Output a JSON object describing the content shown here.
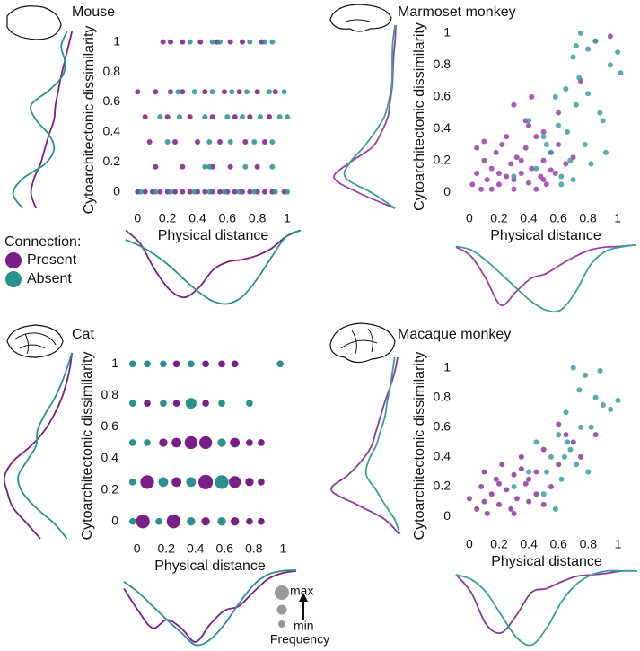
{
  "chart_data": [
    {
      "type": "scatter",
      "title": "Mouse",
      "x_label": "Physical distance",
      "y_label": "Cytoarchitectonic dissimilarity",
      "xlim": [
        -0.08,
        1.09
      ],
      "ylim": [
        -0.11,
        1.07
      ],
      "xticks": [
        0,
        0.2,
        0.4,
        0.6,
        0.8,
        1
      ],
      "yticks": [
        0,
        0.2,
        0.4,
        0.6,
        0.8,
        1
      ],
      "legend_title": "Connection:",
      "series": [
        {
          "name": "Present",
          "color": "#7a1f87",
          "x": [
            0.17,
            0.22,
            0.3,
            0.42,
            0.53,
            0.62,
            0.7,
            0.83,
            0.0,
            0.12,
            0.22,
            0.3,
            0.45,
            0.58,
            0.68,
            0.8,
            0.92,
            0.05,
            0.2,
            0.35,
            0.5,
            0.65,
            0.75,
            0.88,
            0.08,
            0.25,
            0.4,
            0.55,
            0.72,
            0.85,
            0.12,
            0.3,
            0.5,
            0.62,
            0.8,
            0,
            0.05,
            0.1,
            0.15,
            0.2,
            0.25,
            0.3,
            0.35,
            0.4,
            0.45,
            0.5,
            0.55,
            0.6,
            0.65,
            0.7,
            0.75,
            0.8,
            0.85,
            0.9,
            0.98
          ],
          "y": [
            1,
            1,
            1,
            1,
            1,
            1,
            1,
            1,
            0.667,
            0.667,
            0.667,
            0.667,
            0.667,
            0.667,
            0.667,
            0.667,
            0.667,
            0.5,
            0.5,
            0.5,
            0.5,
            0.5,
            0.5,
            0.5,
            0.333,
            0.333,
            0.333,
            0.333,
            0.333,
            0.333,
            0.167,
            0.167,
            0.167,
            0.167,
            0.167,
            0,
            0,
            0,
            0,
            0,
            0,
            0,
            0,
            0,
            0,
            0,
            0,
            0,
            0,
            0,
            0,
            0,
            0,
            0,
            0
          ],
          "x_density": [
            0.05,
            0.22,
            0.55,
            0.8,
            0.9,
            0.78,
            0.55,
            0.45,
            0.42,
            0.37,
            0.28,
            0.13,
            0.05
          ],
          "y_density": [
            0.56,
            0.63,
            0.59,
            0.5,
            0.44,
            0.38,
            0.31,
            0.29,
            0.25,
            0.21,
            0.16,
            0.11,
            0.06
          ]
        },
        {
          "name": "Absent",
          "color": "#2a928e",
          "x": [
            0.35,
            0.5,
            0.55,
            0.75,
            0.85,
            0.9,
            0.27,
            0.38,
            0.5,
            0.63,
            0.73,
            0.88,
            0.98,
            0.15,
            0.28,
            0.45,
            0.6,
            0.7,
            0.82,
            0.95,
            1.0,
            0.2,
            0.48,
            0.62,
            0.78,
            0.9,
            0.45,
            0.48,
            0.72,
            0.9,
            0.02,
            0.12,
            0.22,
            0.38,
            0.48,
            0.58,
            0.68,
            0.78,
            0.92,
            1.0
          ],
          "y": [
            1,
            1,
            1,
            1,
            1,
            1,
            0.667,
            0.667,
            0.667,
            0.667,
            0.667,
            0.667,
            0.667,
            0.5,
            0.5,
            0.5,
            0.5,
            0.5,
            0.5,
            0.5,
            0.5,
            0.333,
            0.333,
            0.333,
            0.333,
            0.333,
            0.167,
            0.167,
            0.167,
            0.167,
            0,
            0,
            0,
            0,
            0,
            0,
            0,
            0,
            0,
            0
          ],
          "x_density": [
            0.17,
            0.25,
            0.36,
            0.5,
            0.67,
            0.83,
            0.95,
            0.98,
            0.89,
            0.67,
            0.39,
            0.13,
            0.05
          ],
          "y_density": [
            0.75,
            0.88,
            0.75,
            0.44,
            0.31,
            0.38,
            0.56,
            0.63,
            0.38,
            0.19,
            0.16,
            0.21,
            0.13
          ]
        }
      ]
    },
    {
      "type": "scatter",
      "title": "Marmoset monkey",
      "x_label": "Physical distance",
      "y_label": "Cytoarchitectonic dissimilarity",
      "xlim": [
        -0.09,
        1.12
      ],
      "ylim": [
        -0.1,
        1.05
      ],
      "xticks": [
        0,
        0.2,
        0.4,
        0.6,
        0.8,
        1
      ],
      "yticks": [
        0,
        0.2,
        0.4,
        0.6,
        0.8,
        1
      ],
      "series": [
        {
          "color": "#9b3ea8",
          "x": [
            0.02,
            0.05,
            0.08,
            0.1,
            0.12,
            0.15,
            0.18,
            0.2,
            0.22,
            0.25,
            0.28,
            0.3,
            0.32,
            0.35,
            0.38,
            0.4,
            0.42,
            0.45,
            0.48,
            0.5,
            0.52,
            0.55,
            0.58,
            0.6,
            0.65,
            0.7,
            0.05,
            0.1,
            0.15,
            0.2,
            0.25,
            0.3,
            0.35,
            0.4,
            0.45,
            0.5,
            0.55,
            0.3,
            0.42,
            0.6,
            0.75,
            0.85,
            0.95,
            0.5,
            0.38
          ],
          "y": [
            0.05,
            0.12,
            0.02,
            0.2,
            0.08,
            0.15,
            0.25,
            0.05,
            0.3,
            0.1,
            0.18,
            0.02,
            0.22,
            0.12,
            0.28,
            0.06,
            0.15,
            0.35,
            0.1,
            0.2,
            0.05,
            0.25,
            0.12,
            0.3,
            0.18,
            0.22,
            0.28,
            0.32,
            0.02,
            0.12,
            0.35,
            0.08,
            0.2,
            0.42,
            0.02,
            0.38,
            0.14,
            0.55,
            0.6,
            0.5,
            0.7,
            0.95,
            0.98,
            0.08,
            0.45
          ],
          "x_density": [
            0.04,
            0.17,
            0.49,
            0.87,
            0.68,
            0.49,
            0.42,
            0.29,
            0.17,
            0.08,
            0.04,
            0.03,
            0.01
          ],
          "y_density": [
            0.06,
            0.56,
            0.91,
            0.69,
            0.38,
            0.25,
            0.16,
            0.13,
            0.1,
            0.09,
            0.08,
            0.06,
            0.05
          ]
        },
        {
          "color": "#3a9f9a",
          "x": [
            0.45,
            0.5,
            0.55,
            0.6,
            0.62,
            0.65,
            0.68,
            0.7,
            0.72,
            0.75,
            0.78,
            0.8,
            0.85,
            0.9,
            0.95,
            1.0,
            1.02,
            0.58,
            0.66,
            0.74,
            0.82,
            0.88,
            0.52,
            0.62,
            0.72,
            0.8,
            0.92,
            0.3,
            0.4,
            0.7
          ],
          "y": [
            0.15,
            0.35,
            0.25,
            0.42,
            0.1,
            0.65,
            0.2,
            0.85,
            0.55,
            1.0,
            0.3,
            0.9,
            0.95,
            0.45,
            0.8,
            0.88,
            0.75,
            0.6,
            0.38,
            0.72,
            0.18,
            0.5,
            0.3,
            0.05,
            0.92,
            0.62,
            0.25,
            0.1,
            0.45,
            0.08
          ],
          "x_density": [
            0.03,
            0.08,
            0.23,
            0.42,
            0.62,
            0.81,
            0.94,
            0.94,
            0.68,
            0.29,
            0.1,
            0.04,
            0.01
          ],
          "y_density": [
            0.06,
            0.38,
            0.75,
            0.69,
            0.5,
            0.34,
            0.21,
            0.15,
            0.11,
            0.1,
            0.1,
            0.09,
            0.06
          ]
        }
      ]
    },
    {
      "type": "bubble",
      "title": "Cat",
      "x_label": "Physical distance",
      "y_label": "Cytoarchitectonic dissimilarity",
      "xlim": [
        -0.09,
        1.09
      ],
      "ylim": [
        -0.11,
        1.07
      ],
      "xticks": [
        0,
        0.2,
        0.4,
        0.6,
        0.8,
        1
      ],
      "yticks": [
        0,
        0.2,
        0.4,
        0.6,
        0.8,
        1
      ],
      "size_legend": {
        "max": "max",
        "min": "min",
        "title": "Frequency"
      },
      "series": [
        {
          "color": "#7a1f87",
          "x": [
            0.27,
            0.47,
            0.58,
            0.67,
            0.07,
            0.27,
            0.47,
            0.18,
            0.27,
            0.37,
            0.47,
            0.67,
            0.77,
            0.85,
            0.07,
            0.27,
            0.47,
            0.67,
            0.77,
            0.85,
            0.04,
            0.25,
            0.47,
            0.67,
            0.77,
            0.85
          ],
          "y": [
            1,
            1,
            1,
            1,
            0.75,
            0.75,
            0.75,
            0.5,
            0.5,
            0.5,
            0.5,
            0.5,
            0.5,
            0.5,
            0.25,
            0.25,
            0.25,
            0.25,
            0.25,
            0.25,
            0,
            0,
            0,
            0,
            0,
            0
          ],
          "size": [
            2,
            2,
            2,
            2,
            2,
            2,
            2,
            3,
            4,
            7,
            7,
            4,
            2,
            2,
            8,
            4,
            9,
            6,
            3,
            2,
            8,
            8,
            3,
            3,
            2,
            2
          ],
          "x_density": [
            0.24,
            0.53,
            0.76,
            0.65,
            0.76,
            0.94,
            0.71,
            0.53,
            0.47,
            0.29,
            0.12,
            0.04,
            0.01
          ],
          "y_density": [
            0.5,
            0.69,
            0.88,
            0.96,
            1.0,
            0.88,
            0.63,
            0.44,
            0.31,
            0.21,
            0.14,
            0.09,
            0.06
          ]
        },
        {
          "color": "#2a928e",
          "x": [
            -0.03,
            0.07,
            0.18,
            0.37,
            0.98,
            -0.03,
            0.18,
            0.37,
            0.58,
            0.77,
            -0.03,
            0.07,
            0.58,
            -0.03,
            0.18,
            0.37,
            0.58,
            -0.03,
            0.15,
            0.37,
            0.58
          ],
          "y": [
            1,
            1,
            1,
            1,
            1,
            0.75,
            0.75,
            0.75,
            0.75,
            0.75,
            0.5,
            0.5,
            0.5,
            0.25,
            0.25,
            0.25,
            0.25,
            0,
            0,
            0,
            0
          ],
          "size": [
            2,
            2,
            2,
            2,
            2,
            2,
            2,
            5,
            2,
            2,
            2,
            2,
            3,
            2,
            4,
            4,
            8,
            2,
            2,
            3,
            3
          ],
          "x_density": [
            0.15,
            0.29,
            0.47,
            0.65,
            0.82,
            0.98,
            0.91,
            0.71,
            0.44,
            0.2,
            0.06,
            0.01,
            0.0
          ],
          "y_density": [
            0.13,
            0.31,
            0.56,
            0.75,
            0.81,
            0.69,
            0.56,
            0.54,
            0.44,
            0.31,
            0.21,
            0.13,
            0.06
          ]
        }
      ]
    },
    {
      "type": "scatter",
      "title": "Macaque monkey",
      "x_label": "Physical distance",
      "y_label": "Cytoarchitectonic dissimilarity",
      "xlim": [
        -0.09,
        1.13
      ],
      "ylim": [
        -0.12,
        1.07
      ],
      "xticks": [
        0,
        0.2,
        0.4,
        0.6,
        0.8,
        1
      ],
      "yticks": [
        0,
        0.2,
        0.4,
        0.6,
        0.8,
        1
      ],
      "series": [
        {
          "color": "#8a3a9a",
          "x": [
            0.0,
            0.05,
            0.08,
            0.1,
            0.12,
            0.15,
            0.18,
            0.2,
            0.22,
            0.25,
            0.28,
            0.3,
            0.32,
            0.35,
            0.38,
            0.4,
            0.45,
            0.5,
            0.55,
            0.6,
            0.65,
            0.7,
            0.1,
            0.2,
            0.3,
            0.4,
            0.5,
            0.6,
            0.75,
            0.85,
            0.35,
            0.45
          ],
          "y": [
            0.12,
            0.05,
            0.2,
            0.3,
            0.02,
            0.15,
            0.25,
            0.08,
            0.35,
            0.18,
            0.05,
            0.28,
            0.12,
            0.4,
            0.22,
            0.1,
            0.3,
            0.45,
            0.2,
            0.35,
            0.55,
            0.5,
            0.1,
            0.22,
            0.02,
            0.25,
            0.08,
            0.62,
            0.4,
            0.55,
            0.32,
            0.15
          ],
          "x_density": [
            0.06,
            0.29,
            0.71,
            0.82,
            0.59,
            0.29,
            0.24,
            0.15,
            0.08,
            0.06,
            0.04,
            0.01,
            0.01
          ],
          "y_density": [
            0.04,
            0.23,
            0.6,
            0.95,
            0.73,
            0.54,
            0.41,
            0.35,
            0.29,
            0.23,
            0.16,
            0.1,
            0.06
          ]
        },
        {
          "color": "#3a9f9a",
          "x": [
            0.4,
            0.45,
            0.5,
            0.55,
            0.6,
            0.62,
            0.65,
            0.68,
            0.7,
            0.72,
            0.75,
            0.78,
            0.8,
            0.85,
            0.9,
            0.95,
            1.0,
            0.58,
            0.66,
            0.74,
            0.82,
            0.88,
            0.52,
            0.64,
            0.3
          ],
          "y": [
            0.3,
            0.5,
            0.15,
            0.4,
            0.55,
            0.25,
            0.7,
            0.45,
            1.0,
            0.35,
            0.6,
            0.95,
            0.3,
            0.8,
            0.75,
            0.72,
            0.78,
            0.05,
            0.5,
            0.85,
            0.6,
            0.98,
            0.3,
            0.4,
            0.2
          ],
          "x_density": [
            0.06,
            0.12,
            0.29,
            0.59,
            0.88,
            0.98,
            0.76,
            0.41,
            0.18,
            0.06,
            0.01,
            0.01,
            0.01
          ],
          "y_density": [
            0.03,
            0.1,
            0.23,
            0.35,
            0.48,
            0.45,
            0.35,
            0.29,
            0.23,
            0.2,
            0.16,
            0.13,
            0.1
          ]
        }
      ]
    }
  ]
}
